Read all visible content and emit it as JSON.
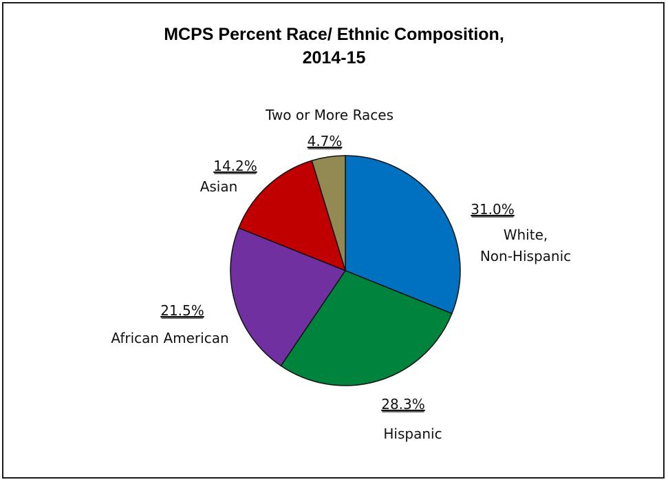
{
  "chart_data": {
    "type": "pie",
    "title_lines": [
      "MCPS Percent Race/ Ethnic Composition,",
      "2014-15"
    ],
    "slices": [
      {
        "label_lines": [
          "White,",
          "Non-Hispanic"
        ],
        "value": 31.0,
        "display": "31.0%",
        "color": "#0070C0"
      },
      {
        "label_lines": [
          "Hispanic"
        ],
        "value": 28.3,
        "display": "28.3%",
        "color": "#00843D"
      },
      {
        "label_lines": [
          "African American"
        ],
        "value": 21.5,
        "display": "21.5%",
        "color": "#7030A0"
      },
      {
        "label_lines": [
          "Asian"
        ],
        "value": 14.2,
        "display": "14.2%",
        "color": "#C00000"
      },
      {
        "label_lines": [
          "Two or More Races"
        ],
        "value": 4.7,
        "display": "4.7%",
        "color": "#938953"
      }
    ],
    "legend": "none",
    "start_angle_deg": 0,
    "direction": "clockwise"
  }
}
